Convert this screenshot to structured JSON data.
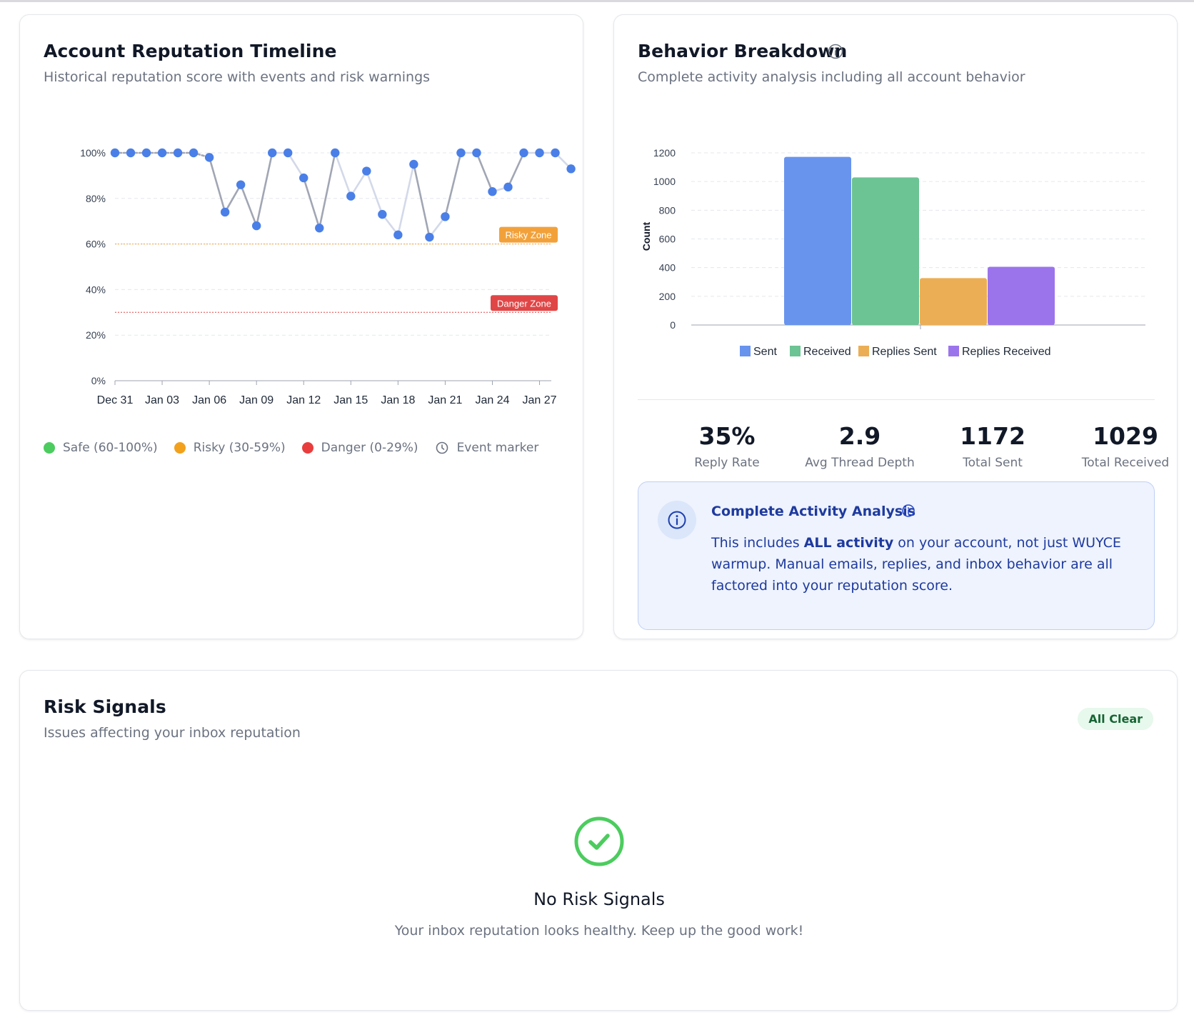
{
  "timeline": {
    "title": "Account Reputation Timeline",
    "subtitle": "Historical reputation score with events and risk warnings",
    "zones": {
      "risky_label": "Risky Zone",
      "risky_value": 60,
      "danger_label": "Danger Zone",
      "danger_value": 30
    },
    "legend": [
      {
        "label": "Safe (60-100%)",
        "color": "#4ccc5e"
      },
      {
        "label": "Risky (30-59%)",
        "color": "#f2a11d"
      },
      {
        "label": "Danger (0-29%)",
        "color": "#e93d3d"
      },
      {
        "label": "Event marker",
        "icon": "clock-icon"
      }
    ]
  },
  "behavior": {
    "title": "Behavior Breakdown",
    "subtitle": "Complete activity analysis including all account behavior",
    "stats": [
      {
        "value": "35%",
        "label": "Reply Rate"
      },
      {
        "value": "2.9",
        "label": "Avg Thread Depth"
      },
      {
        "value": "1172",
        "label": "Total Sent"
      },
      {
        "value": "1029",
        "label": "Total Received"
      }
    ],
    "info": {
      "title": "Complete Activity Analysis",
      "body_pre": "This includes ",
      "body_bold": "ALL activity",
      "body_post": " on your account, not just WUYCE warmup. Manual emails, replies, and inbox behavior are all factored into your reputation score."
    }
  },
  "risk": {
    "title": "Risk Signals",
    "subtitle": "Issues affecting your inbox reputation",
    "badge": "All Clear",
    "empty_title": "No Risk Signals",
    "empty_subtitle": "Your inbox reputation looks healthy. Keep up the good work!"
  },
  "chart_data": [
    {
      "type": "line",
      "title": "Account Reputation Timeline",
      "x": [
        "Dec 31",
        "Jan 01",
        "Jan 02",
        "Jan 03",
        "Jan 04",
        "Jan 05",
        "Jan 06",
        "Jan 07",
        "Jan 08",
        "Jan 09",
        "Jan 10",
        "Jan 11",
        "Jan 12",
        "Jan 13",
        "Jan 14",
        "Jan 15",
        "Jan 16",
        "Jan 17",
        "Jan 18",
        "Jan 19",
        "Jan 20",
        "Jan 21",
        "Jan 22",
        "Jan 23",
        "Jan 24",
        "Jan 25",
        "Jan 26",
        "Jan 27",
        "Jan 28",
        "Jan 29"
      ],
      "y": [
        100,
        100,
        100,
        100,
        100,
        100,
        98,
        74,
        86,
        68,
        100,
        100,
        89,
        67,
        100,
        81,
        92,
        73,
        64,
        95,
        63,
        72,
        100,
        100,
        83,
        85,
        100,
        100,
        100,
        93
      ],
      "x_ticks": [
        "Dec 31",
        "Jan 03",
        "Jan 06",
        "Jan 09",
        "Jan 12",
        "Jan 15",
        "Jan 18",
        "Jan 21",
        "Jan 24",
        "Jan 27"
      ],
      "y_ticks": [
        "0%",
        "20%",
        "40%",
        "60%",
        "80%",
        "100%"
      ],
      "ylim": [
        0,
        100
      ],
      "grid": true,
      "colors": {
        "point": "#4a7fe8",
        "line_light": "#d3d9e9",
        "line_dark": "#a1a6b4",
        "risky": "#f2a13a",
        "danger": "#e04646"
      }
    },
    {
      "type": "bar",
      "categories": [
        "Sent",
        "Received",
        "Replies Sent",
        "Replies Received"
      ],
      "values": [
        1172,
        1029,
        327,
        406
      ],
      "colors": [
        "#6994ee",
        "#6cc393",
        "#ebae55",
        "#9b74ec"
      ],
      "ylabel": "Count",
      "ylim": [
        0,
        1200
      ],
      "y_ticks": [
        "0",
        "200",
        "400",
        "600",
        "800",
        "1000",
        "1200"
      ],
      "grid": true,
      "legend": "bottom"
    }
  ]
}
